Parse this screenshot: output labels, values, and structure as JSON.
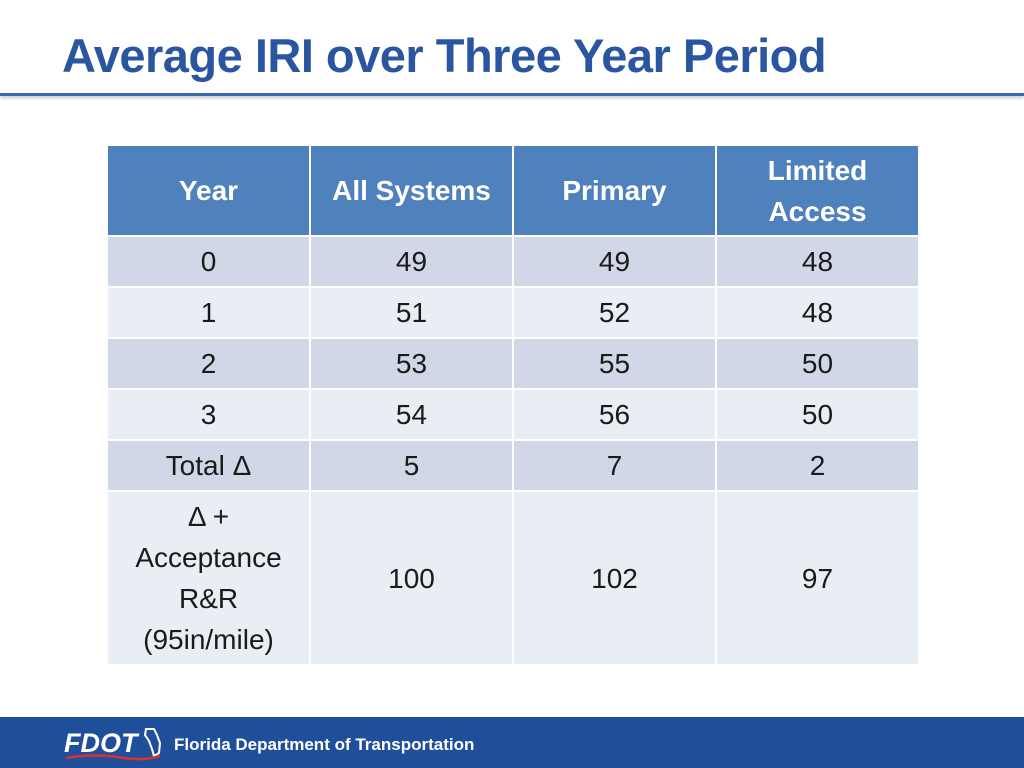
{
  "slide": {
    "title": "Average IRI over Three Year Period"
  },
  "table": {
    "headers": [
      "Year",
      "All Systems",
      "Primary",
      "Limited Access"
    ],
    "rows": [
      [
        "0",
        "49",
        "49",
        "48"
      ],
      [
        "1",
        "51",
        "52",
        "48"
      ],
      [
        "2",
        "53",
        "55",
        "50"
      ],
      [
        "3",
        "54",
        "56",
        "50"
      ],
      [
        "Total Δ",
        "5",
        "7",
        "2"
      ],
      [
        "Δ + Acceptance R&R (95in/mile)",
        "100",
        "102",
        "97"
      ]
    ]
  },
  "footer": {
    "logo_text": "FDOT",
    "org_name": "Florida Department of Transportation"
  },
  "colors": {
    "title": "#2a56a0",
    "header_fill": "#4f81bd",
    "row_band_dark": "#d0d8e8",
    "row_band_light": "#e9edf4",
    "footer_fill": "#1f4f9b"
  }
}
